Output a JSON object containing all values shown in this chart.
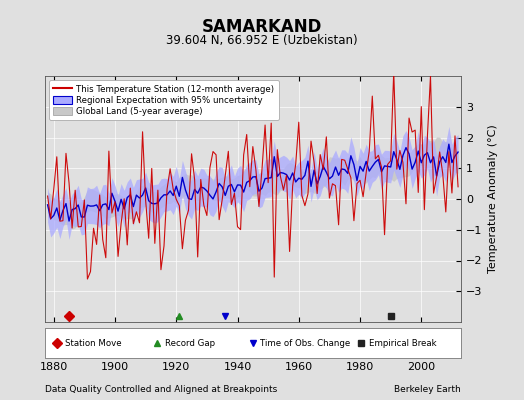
{
  "title": "SAMARKAND",
  "subtitle": "39.604 N, 66.952 E (Uzbekistan)",
  "xlabel_bottom": "Data Quality Controlled and Aligned at Breakpoints",
  "xlabel_right": "Berkeley Earth",
  "ylabel": "Temperature Anomaly (°C)",
  "ylim": [
    -4,
    4
  ],
  "xlim": [
    1877,
    2013
  ],
  "xticks": [
    1880,
    1900,
    1920,
    1940,
    1960,
    1980,
    2000
  ],
  "yticks": [
    -3,
    -2,
    -1,
    0,
    1,
    2,
    3
  ],
  "bg_color": "#e0e0e0",
  "plot_bg_color": "#e0e0e0",
  "station_line_color": "#cc0000",
  "regional_line_color": "#0000cc",
  "regional_fill_color": "#aaaaff",
  "global_fill_color": "#c8c8c8",
  "global_line_color": "#999999",
  "start_year": 1878,
  "end_year": 2012,
  "legend_entries": [
    "This Temperature Station (12-month average)",
    "Regional Expectation with 95% uncertainty",
    "Global Land (5-year average)"
  ],
  "marker_years": [
    1885,
    1921,
    1936,
    1990
  ],
  "marker_types": [
    "D",
    "^",
    "v",
    "s"
  ],
  "marker_colors": [
    "#cc0000",
    "#228B22",
    "#0000cc",
    "#222222"
  ],
  "marker_labels": [
    "Station Move",
    "Record Gap",
    "Time of Obs. Change",
    "Empirical Break"
  ]
}
